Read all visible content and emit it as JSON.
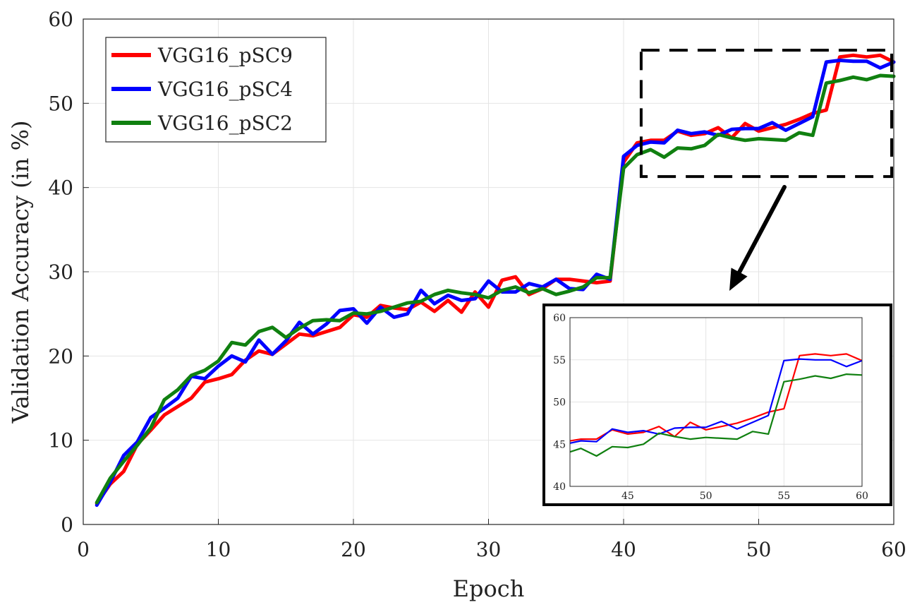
{
  "chart_data": {
    "type": "line",
    "title": "",
    "xlabel": "Epoch",
    "ylabel": "Validation Accuracy (in %)",
    "xlim": [
      0,
      60
    ],
    "ylim": [
      0,
      60
    ],
    "xticks": [
      0,
      10,
      20,
      30,
      40,
      50,
      60
    ],
    "yticks": [
      0,
      10,
      20,
      30,
      40,
      50,
      60
    ],
    "grid": true,
    "legend_position": "top-left",
    "x": [
      1,
      2,
      3,
      4,
      5,
      6,
      7,
      8,
      9,
      10,
      11,
      12,
      13,
      14,
      15,
      16,
      17,
      18,
      19,
      20,
      21,
      22,
      23,
      24,
      25,
      26,
      27,
      28,
      29,
      30,
      31,
      32,
      33,
      34,
      35,
      36,
      37,
      38,
      39,
      40,
      41,
      42,
      43,
      44,
      45,
      46,
      47,
      48,
      49,
      50,
      51,
      52,
      53,
      54,
      55,
      56,
      57,
      58,
      59,
      60
    ],
    "series": [
      {
        "name": "VGG16_pSC9",
        "color": "#ff0000",
        "values": [
          2.5,
          4.8,
          6.3,
          9.5,
          11.2,
          13.0,
          14.0,
          15.0,
          16.9,
          17.3,
          17.8,
          19.5,
          20.6,
          20.2,
          21.4,
          22.6,
          22.4,
          22.9,
          23.4,
          24.9,
          24.6,
          26.0,
          25.7,
          25.5,
          26.4,
          25.3,
          26.6,
          25.2,
          27.6,
          25.8,
          29.0,
          29.4,
          27.3,
          28.0,
          29.1,
          29.1,
          28.9,
          28.7,
          28.9,
          43.0,
          45.3,
          45.6,
          45.6,
          46.7,
          46.2,
          46.4,
          47.1,
          45.9,
          47.6,
          46.7,
          47.1,
          47.5,
          48.1,
          48.8,
          49.2,
          55.5,
          55.7,
          55.5,
          55.7,
          54.9
        ]
      },
      {
        "name": "VGG16_pSC4",
        "color": "#0000ff",
        "values": [
          2.3,
          5.0,
          8.2,
          9.8,
          12.7,
          13.8,
          15.0,
          17.6,
          17.3,
          18.8,
          20.0,
          19.3,
          21.9,
          20.2,
          21.8,
          24.0,
          22.6,
          23.8,
          25.4,
          25.6,
          23.9,
          25.8,
          24.6,
          25.0,
          27.8,
          26.2,
          27.2,
          26.6,
          26.8,
          28.9,
          27.6,
          27.6,
          28.6,
          28.2,
          29.1,
          28.0,
          27.9,
          29.7,
          29.1,
          43.7,
          45.0,
          45.4,
          45.3,
          46.8,
          46.4,
          46.6,
          46.2,
          46.9,
          47.0,
          47.0,
          47.7,
          46.8,
          47.6,
          48.4,
          54.9,
          55.1,
          55.0,
          55.0,
          54.2,
          54.9
        ]
      },
      {
        "name": "VGG16_pSC2",
        "color": "#108010",
        "values": [
          2.6,
          5.5,
          7.5,
          9.4,
          11.5,
          14.8,
          16.0,
          17.7,
          18.3,
          19.4,
          21.6,
          21.3,
          22.9,
          23.4,
          22.2,
          23.3,
          24.2,
          24.3,
          24.2,
          25.1,
          25.0,
          25.3,
          25.8,
          26.3,
          26.5,
          27.3,
          27.8,
          27.5,
          27.3,
          26.9,
          27.8,
          28.2,
          27.5,
          28.0,
          27.3,
          27.7,
          28.2,
          29.3,
          29.3,
          42.3,
          43.9,
          44.5,
          43.6,
          44.7,
          44.6,
          45.0,
          46.3,
          45.9,
          45.6,
          45.8,
          45.7,
          45.6,
          46.5,
          46.2,
          52.4,
          52.7,
          53.1,
          52.8,
          53.3,
          53.2
        ]
      }
    ],
    "annotations": {
      "zoom_box": {
        "xlim": [
          41.3,
          60
        ],
        "ylim": [
          41.3,
          56.3
        ]
      },
      "inset": {
        "xlim": [
          41.3,
          60
        ],
        "ylim": [
          40,
          60
        ],
        "xticks": [
          45,
          50,
          55,
          60
        ],
        "yticks": [
          40,
          45,
          50,
          55,
          60
        ]
      }
    }
  }
}
